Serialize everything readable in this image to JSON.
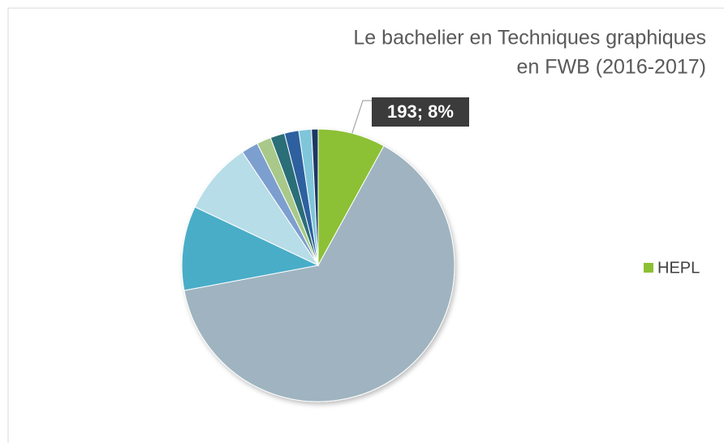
{
  "chart_data": {
    "type": "pie",
    "title": [
      "Le bachelier en Techniques graphiques",
      "en FWB (2016-2017)"
    ],
    "categories": [
      "HEPL",
      null,
      null,
      null,
      null,
      null,
      null,
      null,
      null,
      null
    ],
    "values": [
      193,
      1544,
      241,
      207,
      48,
      41,
      41,
      41,
      36,
      19
    ],
    "value_labels": [
      "193; 8%",
      null,
      null,
      null,
      null,
      null,
      null,
      null,
      null,
      null
    ],
    "colors": [
      "#8cc034",
      "#9fb4c0",
      "#4aadc8",
      "#b7dde8",
      "#7b9fcf",
      "#a9c98a",
      "#2c6e78",
      "#2f60a0",
      "#7fc6db",
      "#1f3864"
    ],
    "legend": "right"
  }
}
